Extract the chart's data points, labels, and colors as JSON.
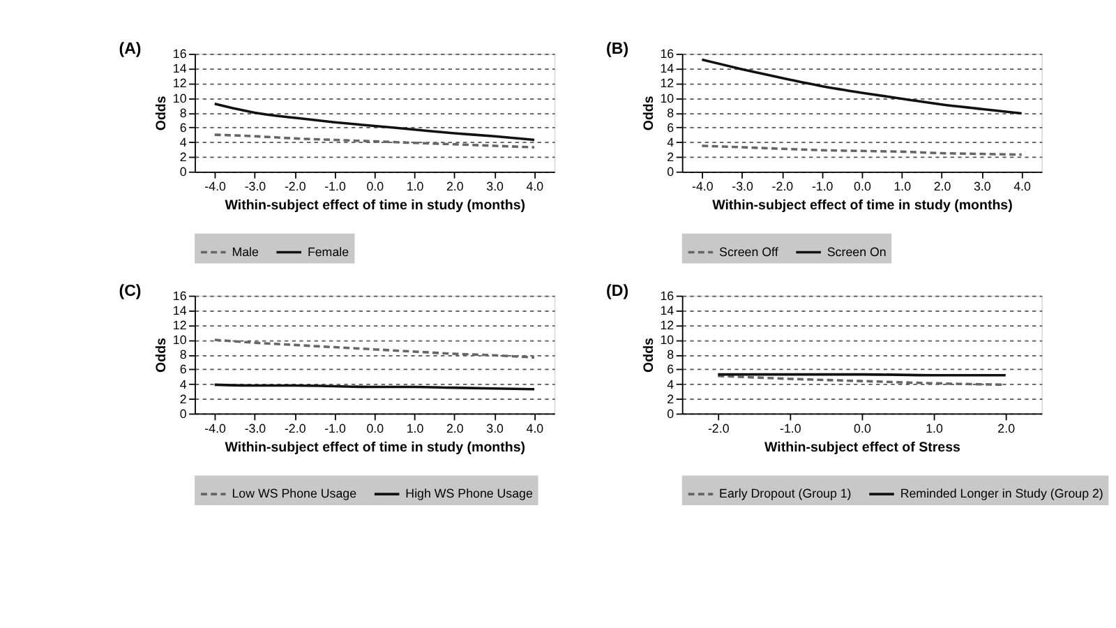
{
  "chart_data": [
    {
      "type": "line",
      "title": "(A)",
      "xlabel": "Within-subject effect of time in study (months)",
      "ylabel": "Odds",
      "categories": [
        "-4.0",
        "-3.0",
        "-2.0",
        "-1.0",
        "0.0",
        "1.0",
        "2.0",
        "3.0",
        "4.0"
      ],
      "ylim": [
        0,
        16
      ],
      "yticks": [
        0,
        2,
        4,
        6,
        8,
        10,
        12,
        14,
        16
      ],
      "grid": "y",
      "legend": "bottom",
      "series": [
        {
          "name": "Male",
          "color": "#666666",
          "line_style": "dashed",
          "values": [
            5.0,
            4.8,
            4.5,
            4.3,
            4.1,
            3.9,
            3.7,
            3.5,
            3.3
          ]
        },
        {
          "name": "Female",
          "color": "#111111",
          "line_style": "solid",
          "values": [
            9.2,
            8.0,
            7.3,
            6.7,
            6.2,
            5.7,
            5.2,
            4.8,
            4.3
          ]
        }
      ]
    },
    {
      "type": "line",
      "title": "(B)",
      "xlabel": "Within-subject effect of time in study (months)",
      "ylabel": "Odds",
      "categories": [
        "-4.0",
        "-3.0",
        "-2.0",
        "-1.0",
        "0.0",
        "1.0",
        "2.0",
        "3.0",
        "4.0"
      ],
      "ylim": [
        0,
        16
      ],
      "yticks": [
        0,
        2,
        4,
        6,
        8,
        10,
        12,
        14,
        16
      ],
      "grid": "y",
      "legend": "bottom",
      "series": [
        {
          "name": "Screen Off",
          "color": "#666666",
          "line_style": "dashed",
          "values": [
            3.5,
            3.3,
            3.1,
            2.9,
            2.8,
            2.7,
            2.5,
            2.4,
            2.3
          ]
        },
        {
          "name": "Screen On",
          "color": "#111111",
          "line_style": "solid",
          "values": [
            15.2,
            13.9,
            12.7,
            11.6,
            10.7,
            9.9,
            9.1,
            8.5,
            7.9
          ]
        }
      ]
    },
    {
      "type": "line",
      "title": "(C)",
      "xlabel": "Within-subject effect of time in study (months)",
      "ylabel": "Odds",
      "categories": [
        "-4.0",
        "-3.0",
        "-2.0",
        "-1.0",
        "0.0",
        "1.0",
        "2.0",
        "3.0",
        "4.0"
      ],
      "ylim": [
        0,
        16
      ],
      "yticks": [
        0,
        2,
        4,
        6,
        8,
        10,
        12,
        14,
        16
      ],
      "grid": "y",
      "legend": "bottom",
      "series": [
        {
          "name": "Low WS Phone Usage",
          "color": "#666666",
          "line_style": "dashed",
          "values": [
            10.0,
            9.6,
            9.3,
            9.0,
            8.7,
            8.4,
            8.1,
            7.9,
            7.6
          ]
        },
        {
          "name": "High WS Phone Usage",
          "color": "#111111",
          "line_style": "solid",
          "values": [
            3.9,
            3.8,
            3.8,
            3.7,
            3.6,
            3.6,
            3.5,
            3.4,
            3.3
          ]
        }
      ]
    },
    {
      "type": "line",
      "title": "(D)",
      "xlabel": "Within-subject effect of Stress",
      "ylabel": "Odds",
      "categories": [
        "-2.0",
        "-1.0",
        "0.0",
        "1.0",
        "2.0"
      ],
      "ylim": [
        0,
        16
      ],
      "yticks": [
        0,
        2,
        4,
        6,
        8,
        10,
        12,
        14,
        16
      ],
      "grid": "y",
      "legend": "bottom",
      "series": [
        {
          "name": "Early Dropout (Group 1)",
          "color": "#666666",
          "line_style": "dashed",
          "values": [
            5.1,
            4.7,
            4.4,
            4.1,
            3.9
          ]
        },
        {
          "name": "Reminded Longer in Study (Group 2)",
          "color": "#111111",
          "line_style": "solid",
          "values": [
            5.3,
            5.3,
            5.3,
            5.2,
            5.2
          ]
        }
      ]
    }
  ]
}
